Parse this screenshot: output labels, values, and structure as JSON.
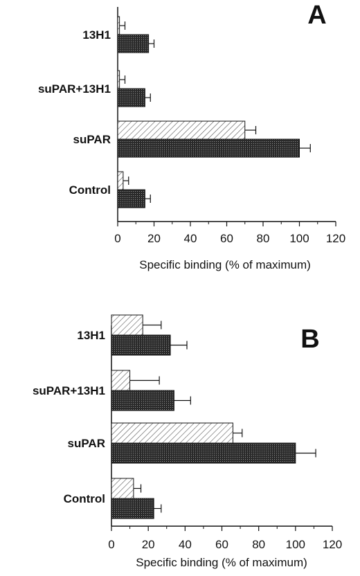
{
  "chart_data": [
    {
      "type": "bar",
      "orientation": "horizontal",
      "panel_label": "A",
      "categories": [
        "13H1",
        "suPAR+13H1",
        "suPAR",
        "Control"
      ],
      "series": [
        {
          "values": [
            1,
            1,
            70,
            3
          ],
          "errors": [
            3,
            3,
            6,
            3
          ],
          "pattern": "hatched",
          "color": "#ffffff"
        },
        {
          "values": [
            17,
            15,
            100,
            15
          ],
          "errors": [
            3,
            3,
            6,
            3
          ],
          "pattern": "dotted-dark",
          "color": "#333333"
        }
      ],
      "xlabel": "Specific binding (% of maximum)",
      "xlim": [
        0,
        120
      ],
      "xticks": [
        0,
        20,
        40,
        60,
        80,
        100,
        120
      ],
      "grid": false
    },
    {
      "type": "bar",
      "orientation": "horizontal",
      "panel_label": "B",
      "categories": [
        "13H1",
        "suPAR+13H1",
        "suPAR",
        "Control"
      ],
      "series": [
        {
          "values": [
            17,
            10,
            66,
            12
          ],
          "errors": [
            10,
            16,
            5,
            4
          ],
          "pattern": "hatched",
          "color": "#ffffff"
        },
        {
          "values": [
            32,
            34,
            100,
            23
          ],
          "errors": [
            9,
            9,
            11,
            4
          ],
          "pattern": "dotted-dark",
          "color": "#333333"
        }
      ],
      "xlabel": "Specific binding (% of maximum)",
      "xlim": [
        0,
        120
      ],
      "xticks": [
        0,
        20,
        40,
        60,
        80,
        100,
        120
      ],
      "grid": false
    }
  ]
}
